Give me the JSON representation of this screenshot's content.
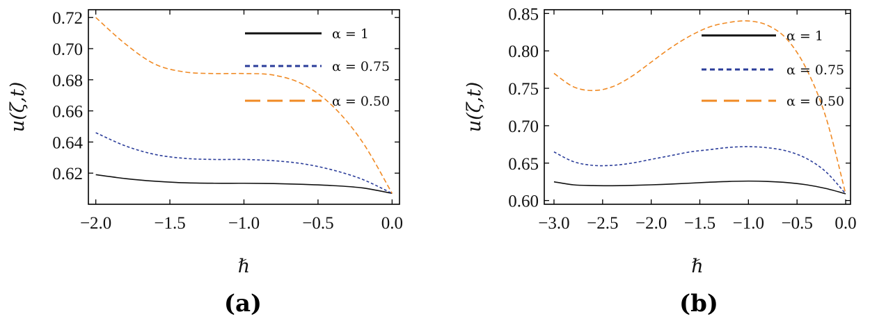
{
  "chart_data": [
    {
      "type": "line",
      "panel_label": "(a)",
      "xlabel": "ℏ",
      "ylabel": "u(ζ,t)",
      "xlim": [
        -2.05,
        0.05
      ],
      "ylim": [
        0.6,
        0.725
      ],
      "xticks": [
        -2.0,
        -1.5,
        -1.0,
        -0.5,
        0.0
      ],
      "xtick_labels": [
        "−2.0",
        "−1.5",
        "−1.0",
        "−0.5",
        "0.0"
      ],
      "yticks": [
        0.62,
        0.64,
        0.66,
        0.68,
        0.7,
        0.72
      ],
      "ytick_labels": [
        "0.62",
        "0.64",
        "0.66",
        "0.68",
        "0.70",
        "0.72"
      ],
      "legend_position": "top-right",
      "x": [
        -2.0,
        -1.8,
        -1.6,
        -1.4,
        -1.2,
        -1.0,
        -0.8,
        -0.6,
        -0.4,
        -0.2,
        0.0
      ],
      "series": [
        {
          "name": "α = 1",
          "color": "#111111",
          "style": "solid",
          "values": [
            0.619,
            0.6165,
            0.6148,
            0.6138,
            0.6135,
            0.6135,
            0.6133,
            0.6128,
            0.612,
            0.6105,
            0.607
          ]
        },
        {
          "name": "α = 0.75",
          "color": "#2b3d9a",
          "style": "dotted",
          "values": [
            0.646,
            0.6375,
            0.632,
            0.6295,
            0.6288,
            0.6288,
            0.628,
            0.626,
            0.622,
            0.616,
            0.607
          ]
        },
        {
          "name": "α = 0.50",
          "color": "#f08a24",
          "style": "dashed",
          "values": [
            0.72,
            0.703,
            0.69,
            0.685,
            0.684,
            0.684,
            0.683,
            0.677,
            0.663,
            0.64,
            0.607
          ]
        }
      ]
    },
    {
      "type": "line",
      "panel_label": "(b)",
      "xlabel": "ℏ",
      "ylabel": "u(ζ,t)",
      "xlim": [
        -3.1,
        0.05
      ],
      "ylim": [
        0.595,
        0.855
      ],
      "xticks": [
        -3.0,
        -2.5,
        -2.0,
        -1.5,
        -1.0,
        -0.5,
        0.0
      ],
      "xtick_labels": [
        "−3.0",
        "−2.5",
        "−2.0",
        "−1.5",
        "−1.0",
        "−0.5",
        "0.0"
      ],
      "yticks": [
        0.6,
        0.65,
        0.7,
        0.75,
        0.8,
        0.85
      ],
      "ytick_labels": [
        "0.60",
        "0.65",
        "0.70",
        "0.75",
        "0.80",
        "0.85"
      ],
      "legend_position": "top-right",
      "x": [
        -3.0,
        -2.8,
        -2.6,
        -2.4,
        -2.2,
        -2.0,
        -1.8,
        -1.6,
        -1.4,
        -1.2,
        -1.0,
        -0.8,
        -0.6,
        -0.4,
        -0.2,
        0.0
      ],
      "series": [
        {
          "name": "α = 1",
          "color": "#111111",
          "style": "solid",
          "values": [
            0.625,
            0.621,
            0.62,
            0.6198,
            0.6202,
            0.621,
            0.622,
            0.6232,
            0.6245,
            0.6255,
            0.626,
            0.6255,
            0.624,
            0.621,
            0.616,
            0.609
          ]
        },
        {
          "name": "α = 0.75",
          "color": "#2b3d9a",
          "style": "dotted",
          "values": [
            0.665,
            0.652,
            0.647,
            0.647,
            0.65,
            0.655,
            0.66,
            0.665,
            0.668,
            0.671,
            0.672,
            0.6705,
            0.666,
            0.656,
            0.638,
            0.609
          ]
        },
        {
          "name": "α = 0.50",
          "color": "#f08a24",
          "style": "dashed",
          "values": [
            0.77,
            0.752,
            0.747,
            0.752,
            0.766,
            0.785,
            0.804,
            0.82,
            0.832,
            0.838,
            0.84,
            0.834,
            0.815,
            0.775,
            0.71,
            0.609
          ]
        }
      ]
    }
  ]
}
